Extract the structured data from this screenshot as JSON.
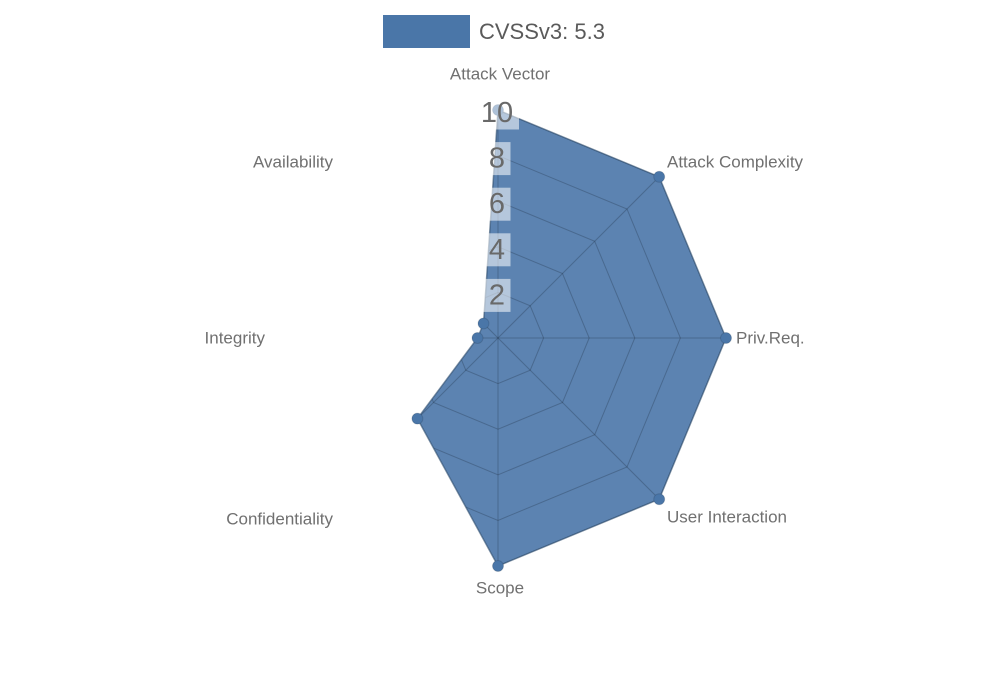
{
  "chart_data": {
    "type": "radar",
    "legend_label": "CVSSv3: 5.3",
    "axes": [
      "Attack Vector",
      "Attack Complexity",
      "Priv.Req.",
      "User Interaction",
      "Scope",
      "Confidentiality",
      "Integrity",
      "Availability"
    ],
    "series": [
      {
        "name": "CVSSv3: 5.3",
        "color": "#4a76a8",
        "values": [
          10,
          10,
          10,
          10,
          10,
          5,
          0.9,
          0.9
        ]
      }
    ],
    "ticks": [
      2,
      4,
      6,
      8,
      10
    ],
    "range": [
      0,
      10
    ],
    "legend_position": "top-center",
    "grid": "polygon web and spokes, visible only inside filled series area",
    "colors": {
      "series_fill": "rgba(74,118,168,0.9)",
      "series_stroke": "rgba(47,76,109,0.6)",
      "marker": "#4a76a8",
      "gridline": "rgba(30,45,65,0.3)",
      "tick_text": "#696969",
      "tick_box": "rgba(255,255,255,0.55)",
      "axis_label": "#707070",
      "legend_text": "#5a5a5a",
      "background": "#ffffff"
    }
  }
}
